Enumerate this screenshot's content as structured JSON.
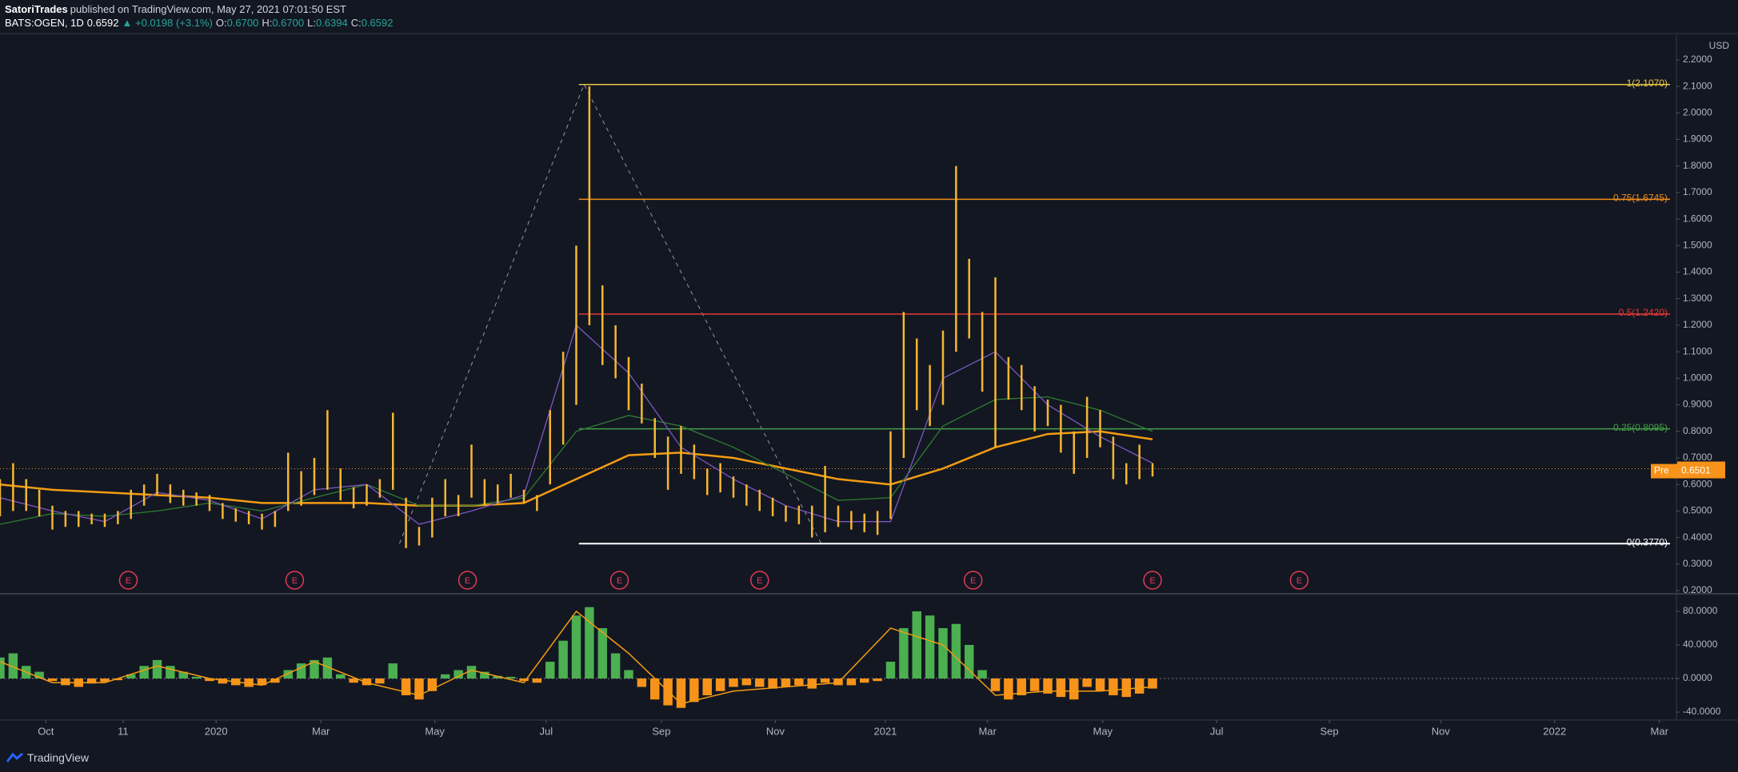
{
  "header": {
    "publisher": "SatoriTrades",
    "published": "published on TradingView.com, May 27, 2021 07:01:50 EST",
    "symbol": "BATS:OGEN, 1D",
    "price": "0.6592",
    "change": "▲ +0.0198 (+3.1%)",
    "ohlc": [
      {
        "key": "O:",
        "value": "0.6700"
      },
      {
        "key": "H:",
        "value": "0.6700"
      },
      {
        "key": "L:",
        "value": "0.6394"
      },
      {
        "key": "C:",
        "value": "0.6592"
      }
    ]
  },
  "footer": {
    "brand": "TradingView"
  },
  "chart_data": {
    "type": "hl_bars",
    "color": "#f5b731",
    "currency": "USD",
    "x": [
      0,
      1,
      2,
      3,
      4,
      5,
      6,
      7,
      8,
      9,
      10,
      11,
      12,
      13,
      14,
      15,
      16,
      17,
      18,
      19,
      20,
      21,
      22,
      23,
      24,
      25,
      26,
      27,
      28,
      29,
      30,
      31,
      32,
      33,
      34,
      35,
      36,
      37,
      38,
      39,
      40,
      41,
      42,
      43,
      44,
      45,
      46,
      47,
      48,
      49,
      50,
      51,
      52,
      53,
      54,
      55,
      56,
      57,
      58,
      59,
      60,
      61,
      62,
      63,
      64,
      65,
      66,
      67,
      68,
      69,
      70,
      71,
      72,
      73,
      74,
      75,
      76,
      77,
      78,
      79,
      80,
      81,
      82,
      83,
      84,
      85,
      86,
      87,
      88
    ],
    "high": [
      0.62,
      0.68,
      0.62,
      0.58,
      0.52,
      0.5,
      0.5,
      0.49,
      0.49,
      0.5,
      0.58,
      0.6,
      0.64,
      0.6,
      0.58,
      0.57,
      0.56,
      0.53,
      0.51,
      0.5,
      0.49,
      0.5,
      0.72,
      0.65,
      0.7,
      0.88,
      0.66,
      0.59,
      0.6,
      0.62,
      0.87,
      0.55,
      0.44,
      0.55,
      0.62,
      0.56,
      0.75,
      0.62,
      0.6,
      0.64,
      0.58,
      0.56,
      0.88,
      1.1,
      1.5,
      2.1,
      1.35,
      1.2,
      1.08,
      0.98,
      0.85,
      0.78,
      0.82,
      0.75,
      0.66,
      0.68,
      0.63,
      0.6,
      0.58,
      0.55,
      0.52,
      0.52,
      0.52,
      0.67,
      0.52,
      0.5,
      0.49,
      0.5,
      0.8,
      1.25,
      1.15,
      1.05,
      1.18,
      1.8,
      1.45,
      1.25,
      1.38,
      1.08,
      1.05,
      0.97,
      0.92,
      0.9,
      0.8,
      0.93,
      0.88,
      0.78,
      0.68,
      0.75,
      0.68
    ],
    "low": [
      0.48,
      0.5,
      0.5,
      0.48,
      0.43,
      0.44,
      0.44,
      0.45,
      0.44,
      0.45,
      0.47,
      0.52,
      0.56,
      0.53,
      0.52,
      0.52,
      0.5,
      0.47,
      0.46,
      0.45,
      0.43,
      0.44,
      0.5,
      0.52,
      0.56,
      0.58,
      0.54,
      0.51,
      0.52,
      0.55,
      0.58,
      0.36,
      0.37,
      0.4,
      0.48,
      0.48,
      0.55,
      0.52,
      0.53,
      0.55,
      0.53,
      0.5,
      0.6,
      0.75,
      0.9,
      1.2,
      1.05,
      1.0,
      0.88,
      0.83,
      0.7,
      0.58,
      0.64,
      0.62,
      0.56,
      0.57,
      0.55,
      0.52,
      0.5,
      0.48,
      0.46,
      0.45,
      0.4,
      0.42,
      0.44,
      0.43,
      0.42,
      0.41,
      0.47,
      0.7,
      0.88,
      0.82,
      0.9,
      1.1,
      1.15,
      0.95,
      0.74,
      0.92,
      0.88,
      0.8,
      0.82,
      0.72,
      0.64,
      0.7,
      0.74,
      0.62,
      0.6,
      0.62,
      0.63
    ],
    "ma_x": [
      0,
      4,
      8,
      12,
      16,
      20,
      24,
      28,
      32,
      36,
      40,
      44,
      48,
      52,
      56,
      60,
      64,
      68,
      72,
      76,
      80,
      84,
      88
    ],
    "moving_averages": [
      {
        "color": "#f39c12",
        "values": [
          0.6,
          0.58,
          0.57,
          0.56,
          0.55,
          0.53,
          0.53,
          0.53,
          0.52,
          0.52,
          0.53,
          0.62,
          0.71,
          0.72,
          0.7,
          0.66,
          0.62,
          0.6,
          0.66,
          0.74,
          0.79,
          0.8,
          0.77
        ]
      },
      {
        "color": "#2e7d32",
        "values": [
          0.45,
          0.49,
          0.48,
          0.5,
          0.53,
          0.5,
          0.55,
          0.6,
          0.52,
          0.52,
          0.55,
          0.8,
          0.86,
          0.82,
          0.74,
          0.64,
          0.54,
          0.55,
          0.82,
          0.92,
          0.93,
          0.88,
          0.8
        ]
      },
      {
        "color": "#7e57c2",
        "values": [
          0.55,
          0.5,
          0.46,
          0.57,
          0.54,
          0.47,
          0.58,
          0.6,
          0.45,
          0.5,
          0.56,
          1.2,
          1.02,
          0.74,
          0.62,
          0.52,
          0.46,
          0.46,
          1.0,
          1.1,
          0.9,
          0.78,
          0.68
        ]
      }
    ],
    "xlim": [
      0,
      128
    ],
    "ylim": [
      0.194,
      2.293
    ],
    "yticks": [
      {
        "value": 0.2,
        "label": "0.2000"
      },
      {
        "value": 0.3,
        "label": "0.3000"
      },
      {
        "value": 0.4,
        "label": "0.4000"
      },
      {
        "value": 0.5,
        "label": "0.5000"
      },
      {
        "value": 0.6,
        "label": "0.6000"
      },
      {
        "value": 0.7,
        "label": "0.7000"
      },
      {
        "value": 0.8,
        "label": "0.8000"
      },
      {
        "value": 0.9,
        "label": "0.9000"
      },
      {
        "value": 1.0,
        "label": "1.0000"
      },
      {
        "value": 1.1,
        "label": "1.1000"
      },
      {
        "value": 1.2,
        "label": "1.2000"
      },
      {
        "value": 1.3,
        "label": "1.3000"
      },
      {
        "value": 1.4,
        "label": "1.4000"
      },
      {
        "value": 1.5,
        "label": "1.5000"
      },
      {
        "value": 1.6,
        "label": "1.6000"
      },
      {
        "value": 1.7,
        "label": "1.7000"
      },
      {
        "value": 1.8,
        "label": "1.8000"
      },
      {
        "value": 1.9,
        "label": "1.9000"
      },
      {
        "value": 2.0,
        "label": "2.0000"
      },
      {
        "value": 2.1,
        "label": "2.1000"
      },
      {
        "value": 2.2,
        "label": "2.2000"
      }
    ],
    "xticks": [
      {
        "value": 3.5,
        "label": "Oct"
      },
      {
        "value": 9.4,
        "label": "11"
      },
      {
        "value": 16.5,
        "label": "2020"
      },
      {
        "value": 24.5,
        "label": "Mar"
      },
      {
        "value": 33.2,
        "label": "May"
      },
      {
        "value": 41.7,
        "label": "Jul"
      },
      {
        "value": 50.5,
        "label": "Sep"
      },
      {
        "value": 59.2,
        "label": "Nov"
      },
      {
        "value": 67.6,
        "label": "2021"
      },
      {
        "value": 75.4,
        "label": "Mar"
      },
      {
        "value": 84.2,
        "label": "May"
      },
      {
        "value": 92.9,
        "label": "Jul"
      },
      {
        "value": 101.5,
        "label": "Sep"
      },
      {
        "value": 110,
        "label": "Nov"
      },
      {
        "value": 118.7,
        "label": "2022"
      },
      {
        "value": 126.7,
        "label": "Mar"
      }
    ],
    "fib": {
      "x_start": 44.2,
      "levels": [
        {
          "label": "1(2.1070)",
          "value": 2.107,
          "color": "#e8c547"
        },
        {
          "label": "0.75(1.6745)",
          "value": 1.6745,
          "color": "#f08c1a"
        },
        {
          "label": "0.5(1.2420)",
          "value": 1.242,
          "color": "#e53935"
        },
        {
          "label": "0.25(0.8095)",
          "value": 0.8095,
          "color": "#43a047"
        },
        {
          "label": "0(0.3770)",
          "value": 0.377,
          "color": "#ffffff"
        }
      ]
    },
    "trend": {
      "x": [
        30.5,
        44.6,
        62.7
      ],
      "y": [
        0.377,
        2.107,
        0.377
      ]
    },
    "last_price": {
      "value": 0.6592,
      "label": "0.6592",
      "color": "#f7931a"
    },
    "pre_market": {
      "name": "Pre",
      "value": 0.6501,
      "label": "0.6501"
    },
    "earnings": {
      "label": "E",
      "x": [
        9.8,
        22.5,
        35.7,
        47.3,
        58,
        74.3,
        88,
        99.2
      ]
    },
    "oscillator": {
      "type": "histogram",
      "ylim": [
        -49.5,
        99
      ],
      "yticks": [
        {
          "value": 80,
          "label": "80.0000"
        },
        {
          "value": 40,
          "label": "40.0000"
        },
        {
          "value": 0,
          "label": "0.0000"
        },
        {
          "value": -40,
          "label": "-40.0000"
        }
      ],
      "positive_color": "#4caf50",
      "negative_color": "#f7931a",
      "values": [
        25,
        30,
        15,
        8,
        -3,
        -8,
        -10,
        -6,
        -4,
        -2,
        5,
        15,
        22,
        15,
        8,
        2,
        -3,
        -6,
        -8,
        -10,
        -8,
        -5,
        10,
        18,
        22,
        25,
        5,
        -5,
        -8,
        -6,
        18,
        -20,
        -25,
        -15,
        5,
        10,
        15,
        8,
        3,
        2,
        -3,
        -5,
        20,
        45,
        75,
        85,
        60,
        30,
        10,
        -10,
        -25,
        -32,
        -35,
        -28,
        -20,
        -15,
        -10,
        -8,
        -10,
        -12,
        -10,
        -8,
        -12,
        -5,
        -8,
        -8,
        -5,
        -3,
        20,
        60,
        80,
        75,
        60,
        65,
        40,
        10,
        -15,
        -25,
        -20,
        -15,
        -18,
        -22,
        -25,
        -10,
        -15,
        -20,
        -22,
        -18,
        -12
      ],
      "signal": {
        "color": "#f39c12",
        "values": [
          20,
          -5,
          -5,
          15,
          0,
          -8,
          20,
          -5,
          -20,
          10,
          -5,
          80,
          30,
          -30,
          -15,
          -10,
          -5,
          60,
          40,
          -20,
          -15,
          -15,
          -10
        ]
      }
    }
  }
}
